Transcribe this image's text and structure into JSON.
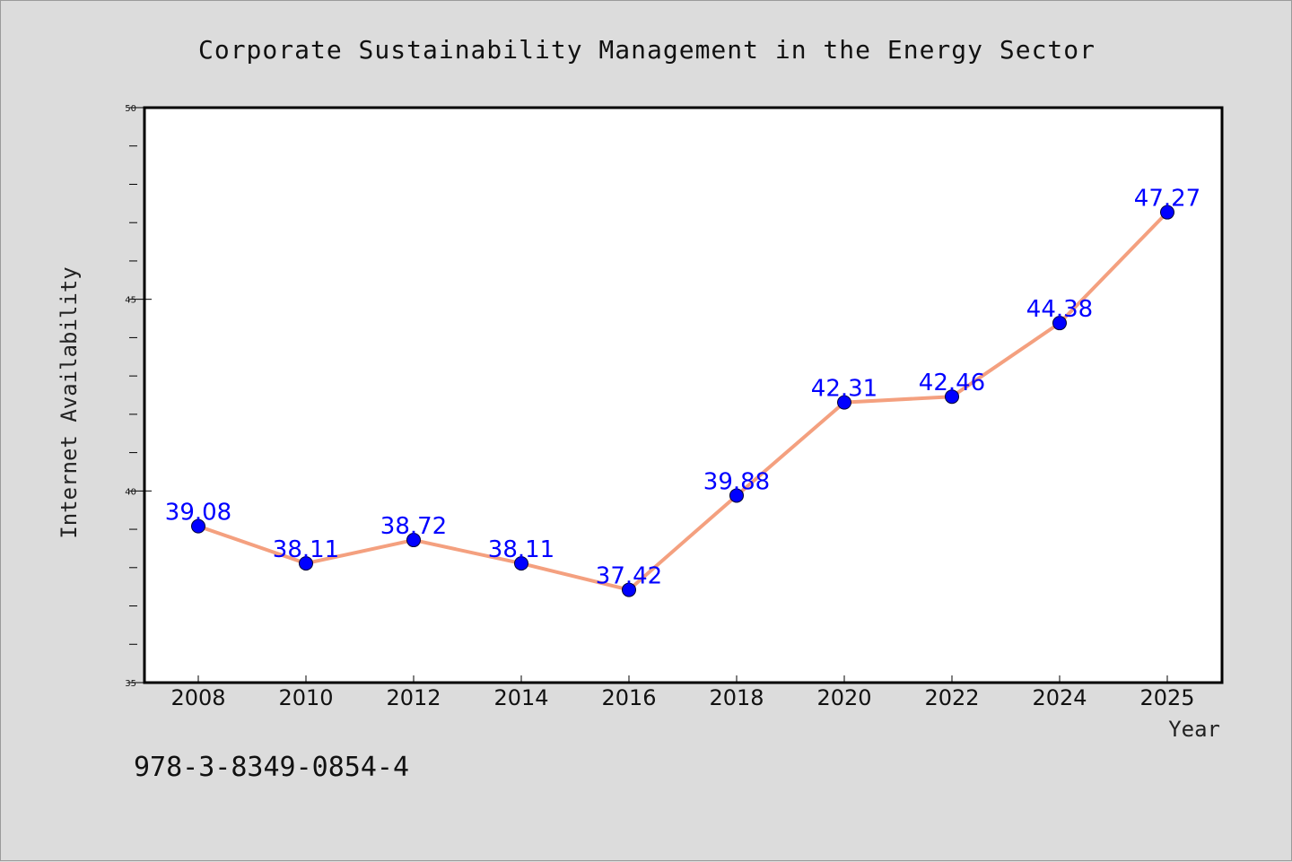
{
  "chart_data": {
    "type": "line",
    "title": "Corporate Sustainability Management in the Energy Sector",
    "xlabel": "Year",
    "ylabel": "Internet Availability",
    "x": [
      "2008",
      "2010",
      "2012",
      "2014",
      "2016",
      "2018",
      "2020",
      "2022",
      "2024",
      "2025"
    ],
    "series": [
      {
        "values": [
          39.08,
          38.11,
          38.72,
          38.11,
          37.42,
          39.88,
          42.31,
          42.46,
          44.38,
          47.27
        ],
        "line_color": "#f4a07f",
        "marker_color": "#0000ff"
      }
    ],
    "data_labels": [
      "39.08",
      "38.11",
      "38.72",
      "38.11",
      "37.42",
      "39.88",
      "42.31",
      "42.46",
      "44.38",
      "47.27"
    ],
    "ylim": [
      35,
      50
    ],
    "yticks": [
      "35",
      "40",
      "45",
      "50"
    ],
    "grid": false,
    "legend": "none"
  },
  "footer": {
    "isbn": "978-3-8349-0854-4"
  },
  "colors": {
    "background": "#dcdcdc",
    "plot_background": "#ffffff",
    "line": "#f4a07f",
    "marker": "#0000ff",
    "label": "#0000ff"
  }
}
